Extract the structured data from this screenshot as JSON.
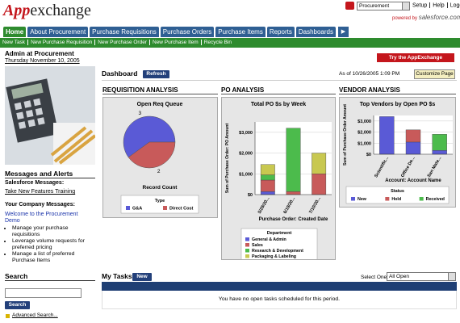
{
  "header": {
    "logo_app": "App",
    "logo_rest": "exchange",
    "app_select": "Procurement",
    "links": [
      "Setup",
      "Help",
      "Logout"
    ],
    "powered_by": "powered by",
    "powered_brand": "salesforce.com"
  },
  "tabs": [
    "Home",
    "About Procurement",
    "Purchase Requisitions",
    "Purchase Orders",
    "Purchase Items",
    "Reports",
    "Dashboards"
  ],
  "action_links": [
    "New Task",
    "New Purchase Requisition",
    "New Purchase Order",
    "New Purchase Item",
    "Recycle Bin"
  ],
  "sidebar": {
    "user": "Admin at Procurement",
    "date": "Thursday November 10, 2005",
    "messages_heading": "Messages and Alerts",
    "salesforce_label": "Salesforce Messages:",
    "salesforce_link": "Take New Features Training",
    "company_label": "Your Company Messages:",
    "company_link": "Welcome to the Procurement Demo",
    "bullets": [
      "Manage your purchase requisitions",
      "Leverage volume requests for preferred pricing",
      "Manage a list of preferred Purchase Items"
    ],
    "search_heading": "Search",
    "search_button": "Search",
    "advanced_search": "Advanced Search..."
  },
  "dashboard": {
    "title": "Dashboard",
    "refresh": "Refresh",
    "as_of": "As of 10/26/2005 1:09 PM",
    "customize": "Customize Page",
    "try_button": "Try the AppExchange",
    "panels": [
      "REQUISITION ANALYSIS",
      "PO ANALYSIS",
      "VENDOR ANALYSIS"
    ]
  },
  "tasks": {
    "title": "My Tasks",
    "new": "New",
    "select_label": "Select One:",
    "select_value": "All Open",
    "empty": "You have no open tasks scheduled for this period."
  },
  "chart_data": [
    {
      "type": "pie",
      "title": "Open Req Queue",
      "categories": [
        "G&A",
        "Direct Cost"
      ],
      "values": [
        3,
        2
      ],
      "colors": [
        "#5a5ad6",
        "#c85a5a"
      ],
      "x_label": "Record Count",
      "legend_title": "Type"
    },
    {
      "type": "bar",
      "stacked": true,
      "title": "Total PO $s by Week",
      "categories": [
        "5/29/20...",
        "6/19/20...",
        "7/10/20..."
      ],
      "series": [
        {
          "name": "General & Admin",
          "color": "#5a5ad6",
          "values": [
            150,
            0,
            0
          ]
        },
        {
          "name": "Sales",
          "color": "#c85a5a",
          "values": [
            550,
            150,
            1000
          ]
        },
        {
          "name": "Research & Development",
          "color": "#4cbb4c",
          "values": [
            250,
            3050,
            0
          ]
        },
        {
          "name": "Packaging & Labeling",
          "color": "#c8c850",
          "values": [
            500,
            0,
            1000
          ]
        }
      ],
      "ylim": [
        0,
        3500
      ],
      "yticks": [
        {
          "value": 0,
          "label": "$0"
        },
        {
          "value": 1000,
          "label": "$1,000"
        },
        {
          "value": 2000,
          "label": "$2,000"
        },
        {
          "value": 3000,
          "label": "$3,000"
        }
      ],
      "y_label": "Sum of Purchase Order: PO Amount",
      "x_label": "Purchase Order: Created Date",
      "legend_title": "Department",
      "grid": true
    },
    {
      "type": "bar",
      "stacked": true,
      "title": "Top Vendors by Open PO $s",
      "categories": [
        "Scientific...",
        "Office De...",
        "San Mate..."
      ],
      "series": [
        {
          "name": "New",
          "color": "#5a5ad6",
          "values": [
            3400,
            1100,
            350
          ]
        },
        {
          "name": "Hold",
          "color": "#c85a5a",
          "values": [
            0,
            1100,
            0
          ]
        },
        {
          "name": "Received",
          "color": "#4cbb4c",
          "values": [
            0,
            0,
            1450
          ]
        }
      ],
      "ylim": [
        0,
        3500
      ],
      "yticks": [
        {
          "value": 0,
          "label": "$0"
        },
        {
          "value": 1000,
          "label": "$1,000"
        },
        {
          "value": 2000,
          "label": "$2,000"
        },
        {
          "value": 3000,
          "label": "$3,000"
        }
      ],
      "y_label": "Sum of Purchase Order Amount",
      "x_label": "Account: Account Name",
      "legend_title": "Status",
      "grid": true
    }
  ]
}
